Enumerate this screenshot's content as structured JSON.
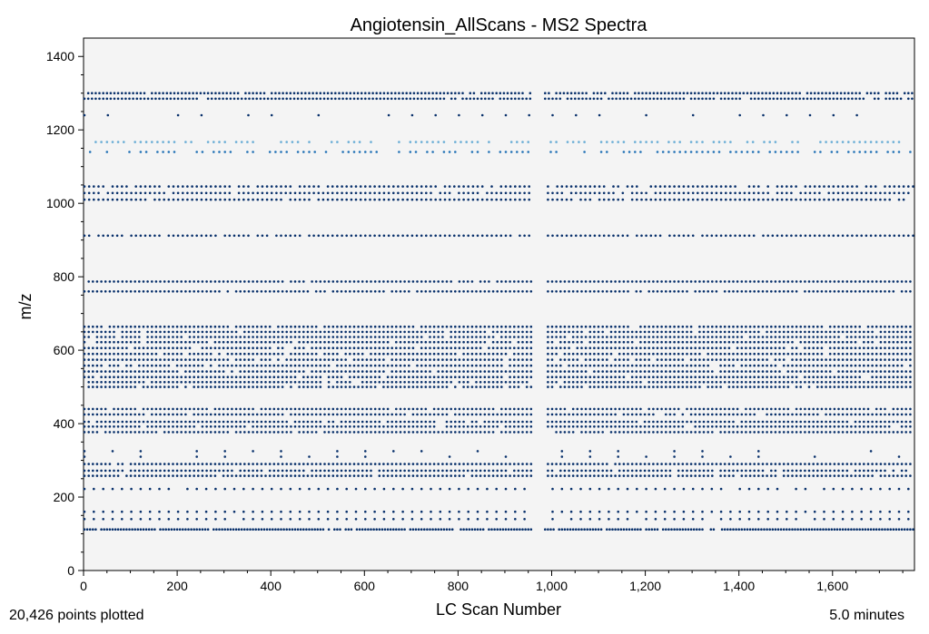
{
  "chart_data": {
    "type": "scatter",
    "title": "Angiotensin_AllScans - MS2 Spectra",
    "xlabel": "LC Scan Number",
    "ylabel": "m/z",
    "xlim": [
      0,
      1775
    ],
    "ylim": [
      0,
      1450
    ],
    "xticks": [
      0,
      200,
      400,
      600,
      800,
      1000,
      1200,
      1400,
      1600
    ],
    "xtick_labels": [
      "0",
      "200",
      "400",
      "600",
      "800",
      "1,000",
      "1,200",
      "1,400",
      "1,600"
    ],
    "yticks": [
      0,
      200,
      400,
      600,
      800,
      1000,
      1200,
      1400
    ],
    "ytick_labels": [
      "0",
      "200",
      "400",
      "600",
      "800",
      "1000",
      "1200",
      "1400"
    ],
    "grid": false,
    "background": "#f4f4f4",
    "colors": {
      "dense": "#08306b",
      "mid": "#2171b5",
      "light": "#6baed6"
    },
    "scan_gap": [
      960,
      985
    ],
    "series": [
      {
        "mz": [
          1300,
          1285
        ],
        "scan_step": 8,
        "intensity": "dense"
      },
      {
        "mz": [
          1240
        ],
        "scan_step": 50,
        "intensity": "dense",
        "sparse": true
      },
      {
        "mz": [
          1167
        ],
        "scan_step": 12,
        "intensity": "light",
        "sparse": true
      },
      {
        "mz": [
          1140
        ],
        "scan_step": 12,
        "intensity": "mid",
        "sparse": true
      },
      {
        "mz": [
          1046,
          1028,
          1010
        ],
        "scan_step": 10,
        "intensity": "dense"
      },
      {
        "mz": [
          912
        ],
        "scan_step": 10,
        "intensity": "dense"
      },
      {
        "mz": [
          787,
          760
        ],
        "scan_step": 9,
        "intensity": "dense"
      },
      {
        "mz": [
          664,
          650,
          636,
          622,
          606,
          590,
          574,
          558,
          542,
          527,
          513,
          500
        ],
        "scan_step": 9,
        "intensity": "dense"
      },
      {
        "mz": [
          440,
          425,
          405,
          392,
          377
        ],
        "scan_step": 9,
        "intensity": "dense"
      },
      {
        "mz": [
          325,
          310
        ],
        "scan_step": 60,
        "intensity": "dense",
        "sparse": true
      },
      {
        "mz": [
          290,
          272,
          258
        ],
        "scan_step": 9,
        "intensity": "dense"
      },
      {
        "mz": [
          222
        ],
        "scan_step": 20,
        "intensity": "dense"
      },
      {
        "mz": [
          160,
          140
        ],
        "scan_step": 20,
        "intensity": "dense"
      },
      {
        "mz": [
          112
        ],
        "scan_step": 6,
        "intensity": "dense"
      }
    ]
  },
  "footer": {
    "points_plotted": "20,426 points plotted",
    "duration": "5.0 minutes"
  }
}
